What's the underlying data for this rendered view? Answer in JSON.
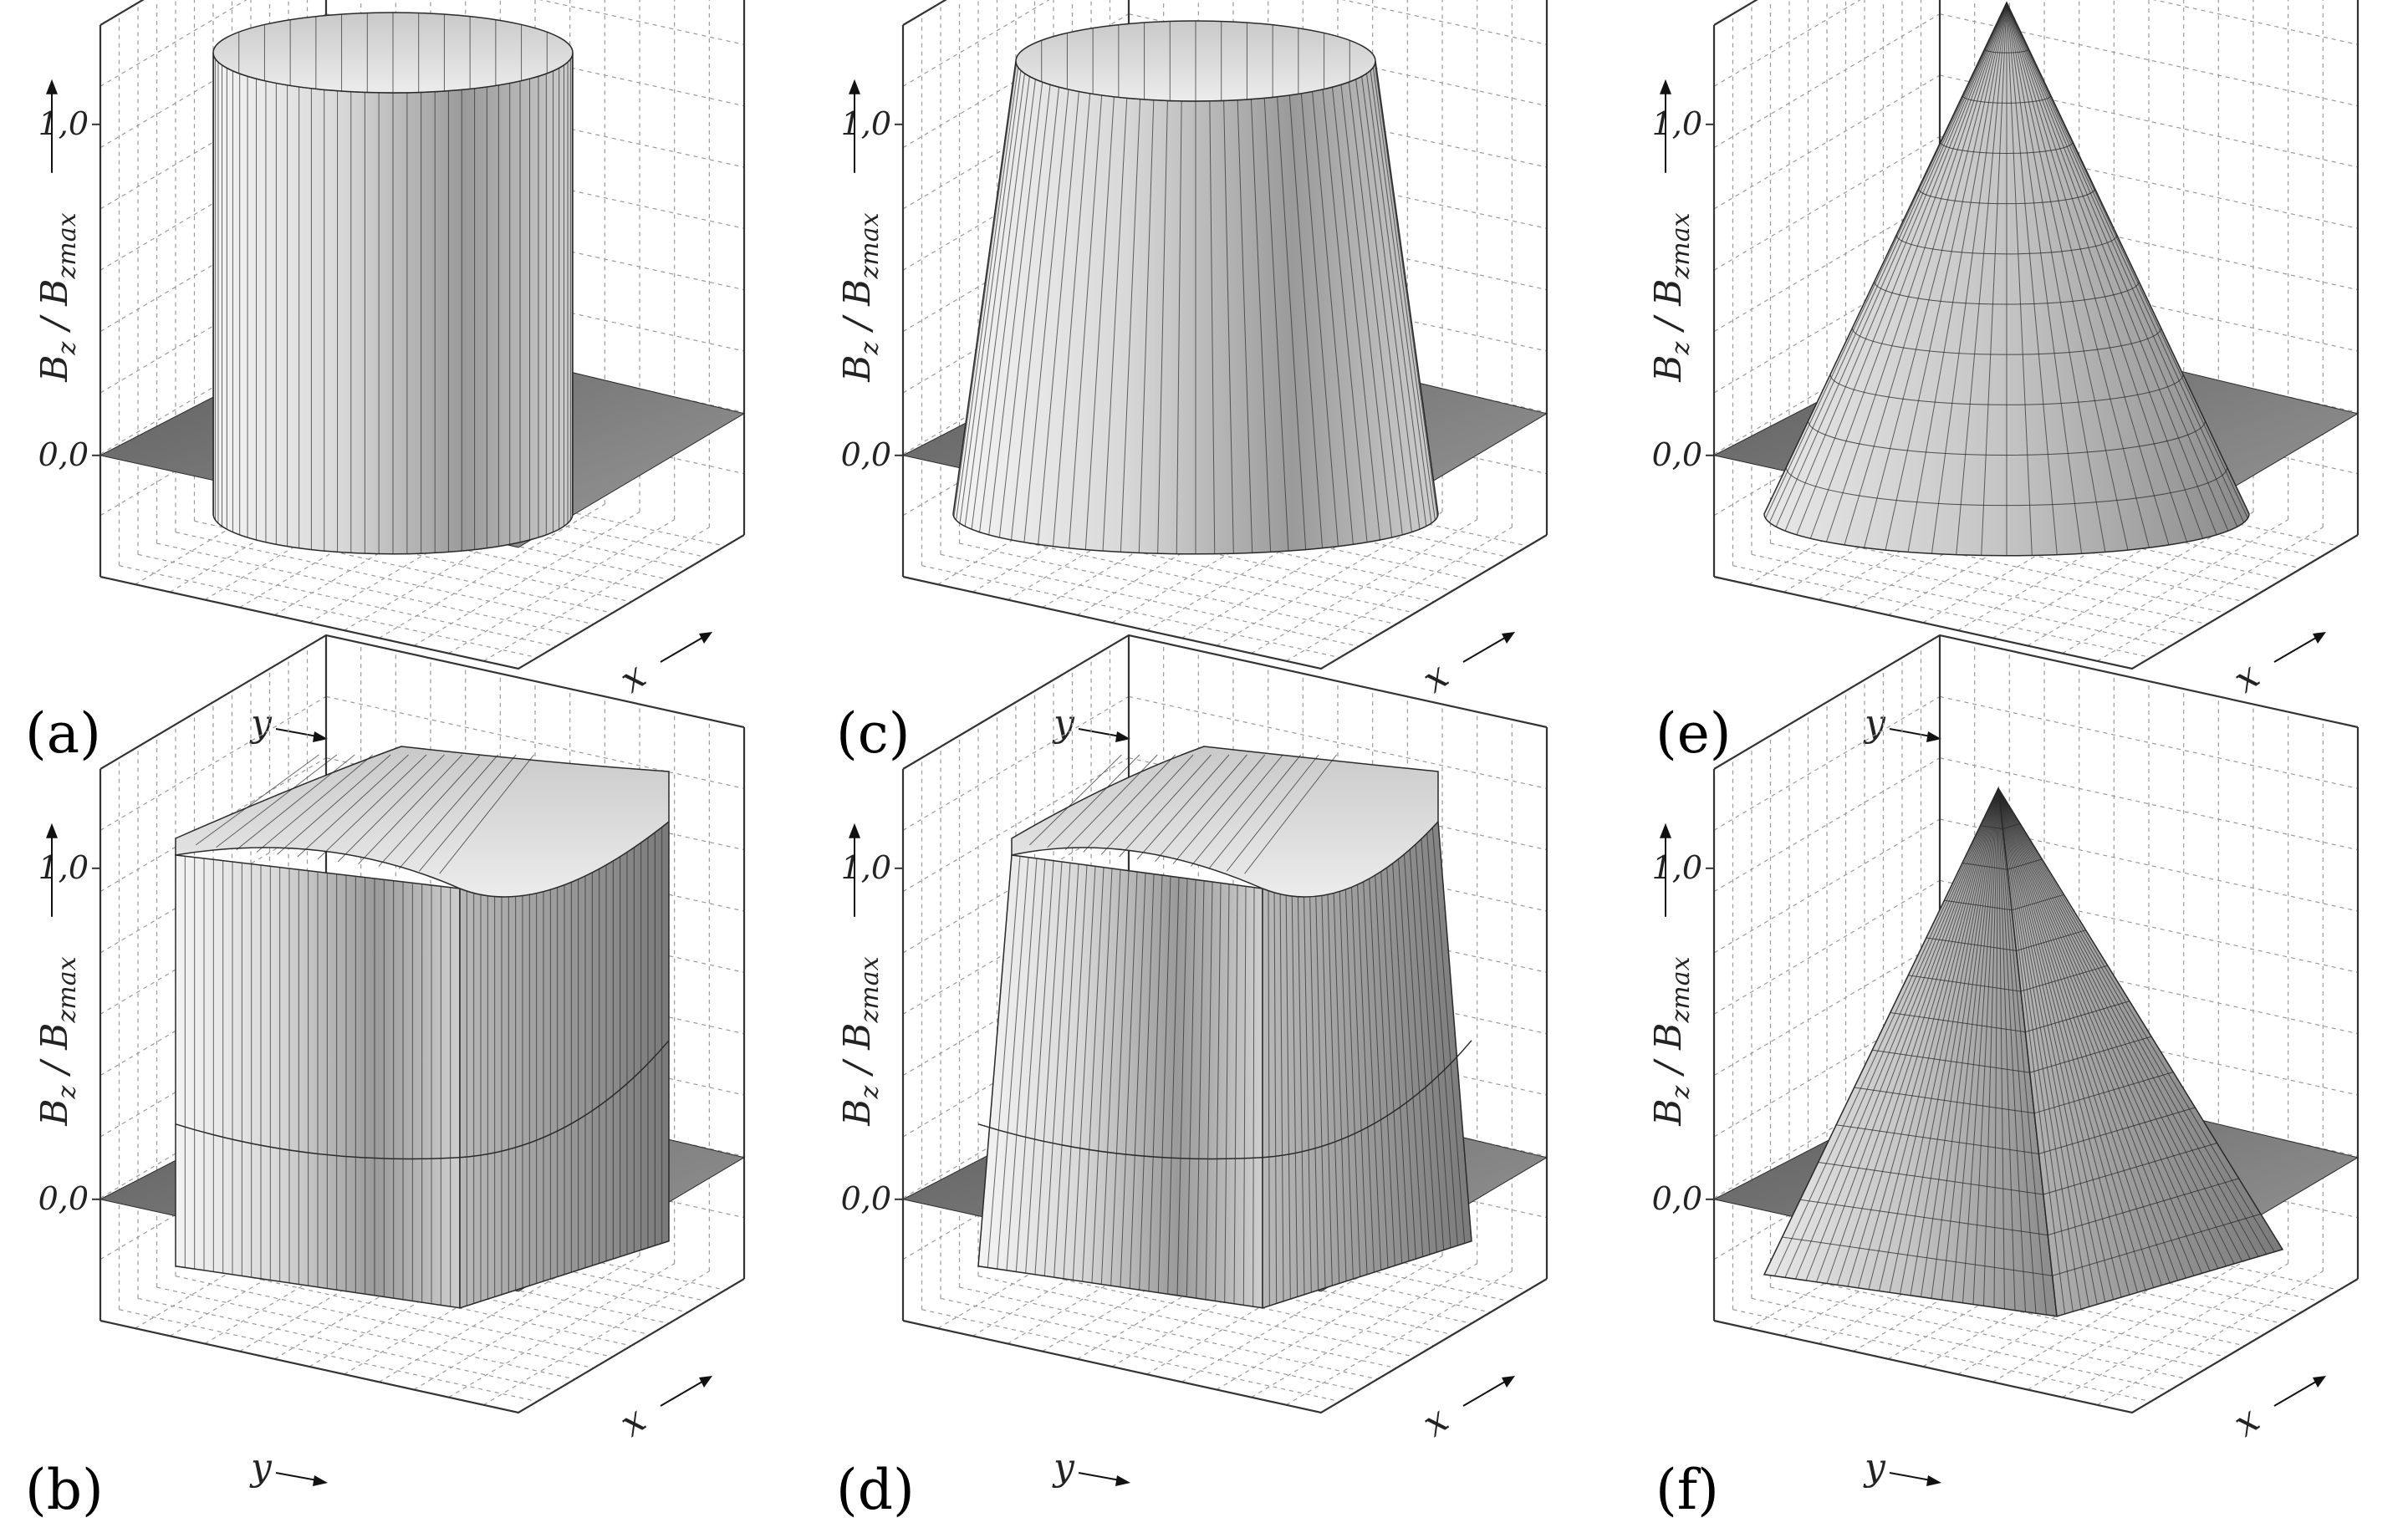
{
  "chart_data": [
    {
      "panel": "(a)",
      "type": "surface3d",
      "shape": "cylinder",
      "zlabel": "B_z / B_zmax",
      "xlabel": "x",
      "ylabel": "y",
      "zticks": [
        "1,0",
        "0,0"
      ],
      "zlim": [
        -0.2,
        1.0
      ],
      "rim_peak": 1.0,
      "profile": "flat-top cylinder with sharp vertical walls and slight negative dip around base"
    },
    {
      "panel": "(b)",
      "type": "surface3d",
      "shape": "square-prism",
      "zlabel": "B_z / B_zmax",
      "xlabel": "x",
      "ylabel": "y",
      "zticks": [
        "1,0",
        "0,0"
      ],
      "zlim": [
        -0.2,
        1.0
      ],
      "corner_peak": 1.2,
      "profile": "square prism with raised corners, saddle-shaped top and negative dip at base"
    },
    {
      "panel": "(c)",
      "type": "surface3d",
      "shape": "truncated-cone",
      "zlabel": "B_z / B_zmax",
      "xlabel": "x",
      "ylabel": "y",
      "zticks": [
        "1,0",
        "0,0"
      ],
      "zlim": [
        -0.2,
        1.0
      ],
      "rim_peak": 1.0,
      "profile": "truncated cone with flat circular top and sloped walls"
    },
    {
      "panel": "(d)",
      "type": "surface3d",
      "shape": "truncated-square-pyramid",
      "zlabel": "B_z / B_zmax",
      "xlabel": "x",
      "ylabel": "y",
      "zticks": [
        "1,0",
        "0,0"
      ],
      "zlim": [
        -0.2,
        1.0
      ],
      "corner_peak": 1.2,
      "profile": "square truncated pyramid with raised corners and saddle top"
    },
    {
      "panel": "(e)",
      "type": "surface3d",
      "shape": "cone",
      "zlabel": "B_z / B_zmax",
      "xlabel": "x",
      "ylabel": "y",
      "zticks": [
        "1,0",
        "0,0"
      ],
      "zlim": [
        -0.2,
        1.0
      ],
      "apex": 1.0,
      "profile": "circular cone with single apex"
    },
    {
      "panel": "(f)",
      "type": "surface3d",
      "shape": "square-pyramid",
      "zlabel": "B_z / B_zmax",
      "xlabel": "x",
      "ylabel": "y",
      "zticks": [
        "1,0",
        "0,0"
      ],
      "zlim": [
        -0.2,
        1.0
      ],
      "apex": 1.0,
      "profile": "square pyramid with single apex"
    }
  ],
  "labels": {
    "a": "(a)",
    "b": "(b)",
    "c": "(c)",
    "d": "(d)",
    "e": "(e)",
    "f": "(f)",
    "tick_top": "1,0",
    "tick_bottom": "0,0",
    "x": "x",
    "y": "y",
    "z_main": "B",
    "z_sub": "z",
    "z_sep": " / B",
    "z_sub2": "zmax"
  },
  "colors": {
    "frame": "#333333",
    "grid": "#9a9a9a",
    "surface_light": "#f2f2f2",
    "surface_mid": "#bdbdbd",
    "surface_dark": "#555555",
    "mesh": "#2a2a2a"
  }
}
